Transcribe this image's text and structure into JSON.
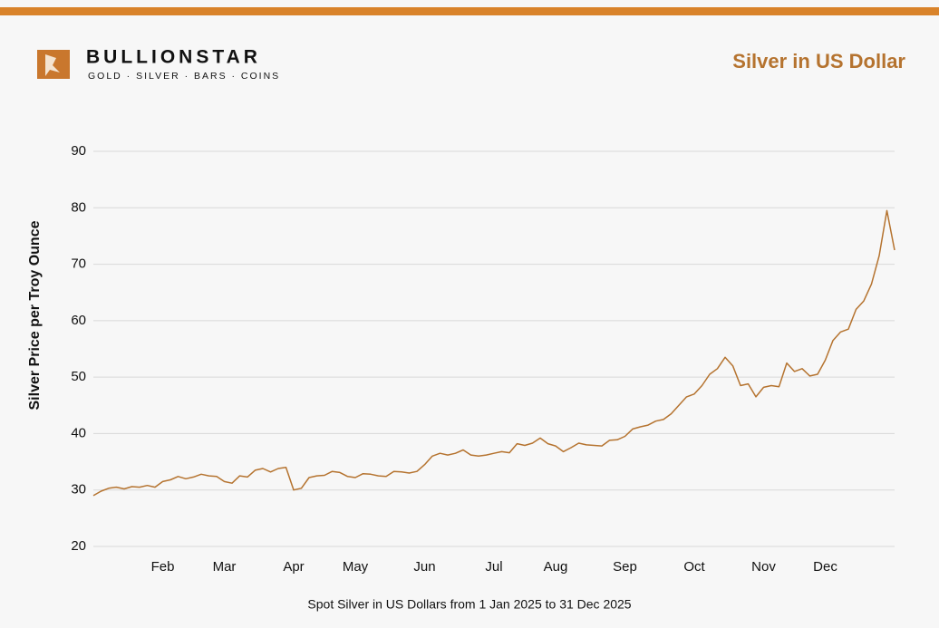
{
  "brand": {
    "name": "BULLIONSTAR",
    "tagline": "GOLD · SILVER · BARS · COINS"
  },
  "chart_data": {
    "type": "line",
    "title": "Silver in US Dollar",
    "y_label": "Silver Price per Troy Ounce",
    "x_label": "Spot Silver in US Dollars from 1 Jan 2025 to 31 Dec 2025",
    "categories": [
      null,
      null,
      null,
      null,
      null,
      null,
      null,
      null,
      null,
      "Feb",
      null,
      null,
      null,
      null,
      null,
      null,
      null,
      "Mar",
      null,
      null,
      null,
      null,
      null,
      null,
      null,
      null,
      "Apr",
      null,
      null,
      null,
      null,
      null,
      null,
      null,
      "May",
      null,
      null,
      null,
      null,
      null,
      null,
      null,
      null,
      "Jun",
      null,
      null,
      null,
      null,
      null,
      null,
      null,
      null,
      "Jul",
      null,
      null,
      null,
      null,
      null,
      null,
      null,
      "Aug",
      null,
      null,
      null,
      null,
      null,
      null,
      null,
      null,
      "Sep",
      null,
      null,
      null,
      null,
      null,
      null,
      null,
      null,
      "Oct",
      null,
      null,
      null,
      null,
      null,
      null,
      null,
      null,
      "Nov",
      null,
      null,
      null,
      null,
      null,
      null,
      null,
      "Dec",
      null,
      null,
      null,
      null,
      null,
      null,
      null,
      null,
      null
    ],
    "series": [
      {
        "name": "Silver",
        "color": "#b5732f",
        "values": [
          29,
          29.8,
          30.3,
          30.5,
          30.2,
          30.6,
          30.5,
          30.8,
          30.5,
          31.5,
          31.8,
          32.4,
          32,
          32.3,
          32.8,
          32.5,
          32.4,
          31.5,
          31.2,
          32.5,
          32.3,
          33.5,
          33.8,
          33.2,
          33.8,
          34,
          30,
          30.3,
          32.2,
          32.5,
          32.6,
          33.3,
          33.1,
          32.4,
          32.2,
          32.9,
          32.8,
          32.5,
          32.4,
          33.3,
          33.2,
          33,
          33.3,
          34.5,
          36,
          36.5,
          36.2,
          36.5,
          37.1,
          36.2,
          36,
          36.2,
          36.5,
          36.8,
          36.6,
          38.2,
          37.9,
          38.3,
          39.2,
          38.2,
          37.8,
          36.8,
          37.5,
          38.3,
          38,
          37.9,
          37.8,
          38.8,
          38.9,
          39.5,
          40.8,
          41.2,
          41.5,
          42.2,
          42.5,
          43.5,
          45,
          46.5,
          47,
          48.5,
          50.5,
          51.5,
          53.5,
          52,
          48.5,
          48.8,
          46.5,
          48.2,
          48.5,
          48.3,
          52.5,
          51,
          51.5,
          50.2,
          50.5,
          53,
          56.5,
          58,
          58.5,
          62,
          63.5,
          66.5,
          71.5,
          79.5,
          72.5
        ]
      }
    ],
    "ylim": [
      20,
      90
    ],
    "yticks": [
      20,
      30,
      40,
      50,
      60,
      70,
      80,
      90
    ],
    "grid": true
  }
}
